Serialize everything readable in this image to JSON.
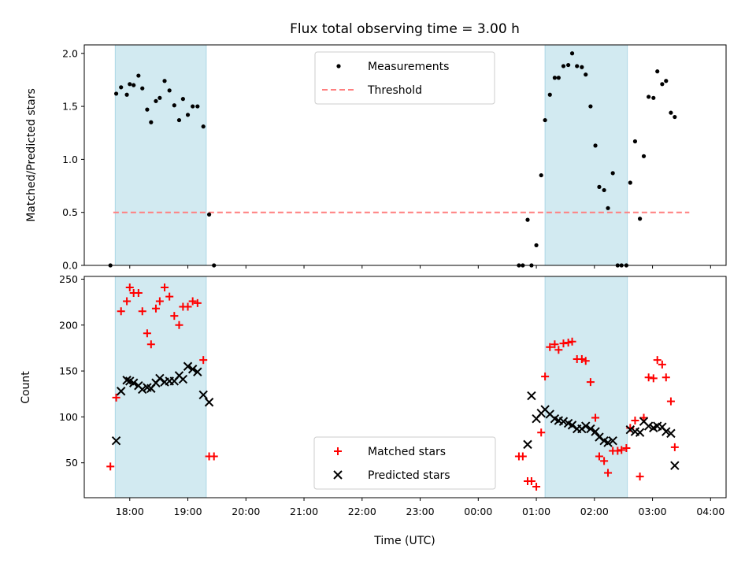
{
  "chart_data": [
    {
      "type": "scatter",
      "title": "Flux total observing time = 3.00 h",
      "ylabel": "Matched/Predicted stars",
      "xlabel": "",
      "ylim": [
        0,
        2.08
      ],
      "yticks": [
        "0.0",
        "0.5",
        "1.0",
        "1.5",
        "2.0"
      ],
      "grid": false,
      "legend": "upper center",
      "shaded_intervals": [
        [
          "17:45",
          "19:19"
        ],
        [
          "01:09",
          "02:34"
        ]
      ],
      "shade_color": "#add8e6",
      "threshold": {
        "name": "Threshold",
        "y": 0.5,
        "x_start": "17:43",
        "x_end": "03:38",
        "color": "#ff7f7f"
      },
      "series": [
        {
          "name": "Measurements",
          "color": "#000000",
          "marker": "dot",
          "points": [
            [
              "17:40",
              0.0
            ],
            [
              "17:46",
              1.62
            ],
            [
              "17:51",
              1.68
            ],
            [
              "17:57",
              1.61
            ],
            [
              "18:00",
              1.71
            ],
            [
              "18:04",
              1.7
            ],
            [
              "18:09",
              1.79
            ],
            [
              "18:13",
              1.67
            ],
            [
              "18:18",
              1.47
            ],
            [
              "18:22",
              1.35
            ],
            [
              "18:27",
              1.55
            ],
            [
              "18:31",
              1.58
            ],
            [
              "18:36",
              1.74
            ],
            [
              "18:41",
              1.65
            ],
            [
              "18:46",
              1.51
            ],
            [
              "18:51",
              1.37
            ],
            [
              "18:55",
              1.57
            ],
            [
              "19:00",
              1.42
            ],
            [
              "19:05",
              1.5
            ],
            [
              "19:10",
              1.5
            ],
            [
              "19:16",
              1.31
            ],
            [
              "19:22",
              0.48
            ],
            [
              "19:27",
              0.0
            ],
            [
              "00:42",
              0.0
            ],
            [
              "00:46",
              0.0
            ],
            [
              "00:51",
              0.43
            ],
            [
              "00:55",
              0.0
            ],
            [
              "01:00",
              0.19
            ],
            [
              "01:05",
              0.85
            ],
            [
              "01:09",
              1.37
            ],
            [
              "01:14",
              1.61
            ],
            [
              "01:19",
              1.77
            ],
            [
              "01:23",
              1.77
            ],
            [
              "01:28",
              1.88
            ],
            [
              "01:33",
              1.89
            ],
            [
              "01:37",
              2.0
            ],
            [
              "01:42",
              1.88
            ],
            [
              "01:47",
              1.87
            ],
            [
              "01:51",
              1.8
            ],
            [
              "01:56",
              1.5
            ],
            [
              "02:01",
              1.13
            ],
            [
              "02:05",
              0.74
            ],
            [
              "02:10",
              0.71
            ],
            [
              "02:14",
              0.54
            ],
            [
              "02:19",
              0.87
            ],
            [
              "02:24",
              0.0
            ],
            [
              "02:28",
              0.0
            ],
            [
              "02:33",
              0.0
            ],
            [
              "02:37",
              0.78
            ],
            [
              "02:42",
              1.17
            ],
            [
              "02:47",
              0.44
            ],
            [
              "02:51",
              1.03
            ],
            [
              "02:56",
              1.59
            ],
            [
              "03:01",
              1.58
            ],
            [
              "03:05",
              1.83
            ],
            [
              "03:10",
              1.71
            ],
            [
              "03:14",
              1.74
            ],
            [
              "03:19",
              1.44
            ],
            [
              "03:23",
              1.4
            ]
          ]
        }
      ]
    },
    {
      "type": "scatter",
      "title": "",
      "xlabel": "Time (UTC)",
      "ylabel": "Count",
      "ylim": [
        12,
        253
      ],
      "yticks": [
        "50",
        "100",
        "150",
        "200",
        "250"
      ],
      "xticks": [
        "18:00",
        "19:00",
        "20:00",
        "21:00",
        "22:00",
        "23:00",
        "00:00",
        "01:00",
        "02:00",
        "03:00",
        "04:00"
      ],
      "grid": false,
      "legend": "lower center",
      "shaded_intervals": [
        [
          "17:45",
          "19:19"
        ],
        [
          "01:09",
          "02:34"
        ]
      ],
      "shade_color": "#add8e6",
      "series": [
        {
          "name": "Matched stars",
          "color": "#ff0000",
          "marker": "plus",
          "points": [
            [
              "17:40",
              46
            ],
            [
              "17:46",
              121
            ],
            [
              "17:51",
              215
            ],
            [
              "17:57",
              226
            ],
            [
              "18:00",
              241
            ],
            [
              "18:04",
              235
            ],
            [
              "18:09",
              235
            ],
            [
              "18:13",
              215
            ],
            [
              "18:18",
              191
            ],
            [
              "18:22",
              179
            ],
            [
              "18:27",
              218
            ],
            [
              "18:31",
              226
            ],
            [
              "18:36",
              241
            ],
            [
              "18:41",
              231
            ],
            [
              "18:46",
              210
            ],
            [
              "18:51",
              200
            ],
            [
              "18:55",
              220
            ],
            [
              "19:00",
              220
            ],
            [
              "19:05",
              226
            ],
            [
              "19:10",
              224
            ],
            [
              "19:16",
              162
            ],
            [
              "19:22",
              57
            ],
            [
              "19:27",
              57
            ],
            [
              "00:42",
              57
            ],
            [
              "00:46",
              57
            ],
            [
              "00:51",
              30
            ],
            [
              "00:55",
              30
            ],
            [
              "01:00",
              24
            ],
            [
              "01:05",
              83
            ],
            [
              "01:09",
              144
            ],
            [
              "01:14",
              176
            ],
            [
              "01:19",
              179
            ],
            [
              "01:23",
              173
            ],
            [
              "01:28",
              180
            ],
            [
              "01:33",
              181
            ],
            [
              "01:37",
              182
            ],
            [
              "01:42",
              163
            ],
            [
              "01:47",
              163
            ],
            [
              "01:51",
              161
            ],
            [
              "01:56",
              138
            ],
            [
              "02:01",
              99
            ],
            [
              "02:05",
              57
            ],
            [
              "02:10",
              52
            ],
            [
              "02:14",
              39
            ],
            [
              "02:19",
              63
            ],
            [
              "02:24",
              63
            ],
            [
              "02:28",
              64
            ],
            [
              "02:33",
              66
            ],
            [
              "02:37",
              88
            ],
            [
              "02:42",
              96
            ],
            [
              "02:47",
              35
            ],
            [
              "02:51",
              99
            ],
            [
              "02:56",
              143
            ],
            [
              "03:01",
              142
            ],
            [
              "03:05",
              162
            ],
            [
              "03:10",
              157
            ],
            [
              "03:14",
              143
            ],
            [
              "03:19",
              117
            ],
            [
              "03:23",
              67
            ]
          ]
        },
        {
          "name": "Predicted stars",
          "color": "#000000",
          "marker": "x",
          "points": [
            [
              "17:46",
              74
            ],
            [
              "17:51",
              128
            ],
            [
              "17:57",
              140
            ],
            [
              "18:00",
              139
            ],
            [
              "18:04",
              137
            ],
            [
              "18:09",
              134
            ],
            [
              "18:13",
              130
            ],
            [
              "18:18",
              132
            ],
            [
              "18:22",
              131
            ],
            [
              "18:27",
              137
            ],
            [
              "18:31",
              142
            ],
            [
              "18:36",
              138
            ],
            [
              "18:41",
              139
            ],
            [
              "18:46",
              139
            ],
            [
              "18:51",
              145
            ],
            [
              "18:55",
              141
            ],
            [
              "19:00",
              155
            ],
            [
              "19:05",
              152
            ],
            [
              "19:10",
              149
            ],
            [
              "19:16",
              124
            ],
            [
              "19:22",
              116
            ],
            [
              "00:51",
              70
            ],
            [
              "00:55",
              123
            ],
            [
              "01:00",
              98
            ],
            [
              "01:05",
              104
            ],
            [
              "01:09",
              108
            ],
            [
              "01:14",
              103
            ],
            [
              "01:19",
              98
            ],
            [
              "01:23",
              96
            ],
            [
              "01:28",
              95
            ],
            [
              "01:33",
              93
            ],
            [
              "01:37",
              91
            ],
            [
              "01:42",
              87
            ],
            [
              "01:47",
              87
            ],
            [
              "01:51",
              90
            ],
            [
              "01:56",
              87
            ],
            [
              "02:01",
              84
            ],
            [
              "02:05",
              78
            ],
            [
              "02:10",
              74
            ],
            [
              "02:14",
              72
            ],
            [
              "02:19",
              74
            ],
            [
              "02:37",
              86
            ],
            [
              "02:42",
              84
            ],
            [
              "02:47",
              83
            ],
            [
              "02:51",
              95
            ],
            [
              "02:56",
              90
            ],
            [
              "03:01",
              88
            ],
            [
              "03:05",
              90
            ],
            [
              "03:10",
              89
            ],
            [
              "03:14",
              84
            ],
            [
              "03:19",
              82
            ],
            [
              "03:23",
              47
            ]
          ]
        }
      ]
    }
  ]
}
